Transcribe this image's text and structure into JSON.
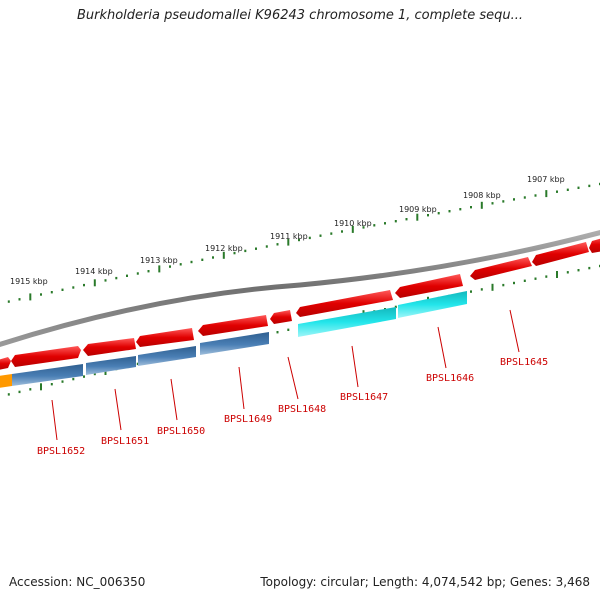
{
  "title": "Burkholderia pseudomallei K96243 chromosome 1, complete sequ...",
  "footer": {
    "accession": "Accession: NC_006350",
    "summary": "Topology: circular; Length: 4,074,542 bp; Genes: 3,468"
  },
  "scale_labels": [
    "1915 kbp",
    "1914 kbp",
    "1913 kbp",
    "1912 kbp",
    "1911 kbp",
    "1910 kbp",
    "1909 kbp",
    "1908 kbp",
    "1907 kbp"
  ],
  "gene_labels": [
    "BPSL1652",
    "BPSL1651",
    "BPSL1650",
    "BPSL1649",
    "BPSL1648",
    "BPSL1647",
    "BPSL1646",
    "BPSL1645"
  ],
  "colors": {
    "backbone": "#888888",
    "forward_cds": "#ee1111",
    "reverse_cds": "#4a7fb5",
    "highlight": "#22e5ea",
    "orange": "#ff9900",
    "ticks": "#2a7a2a",
    "label": "#cc0000"
  }
}
